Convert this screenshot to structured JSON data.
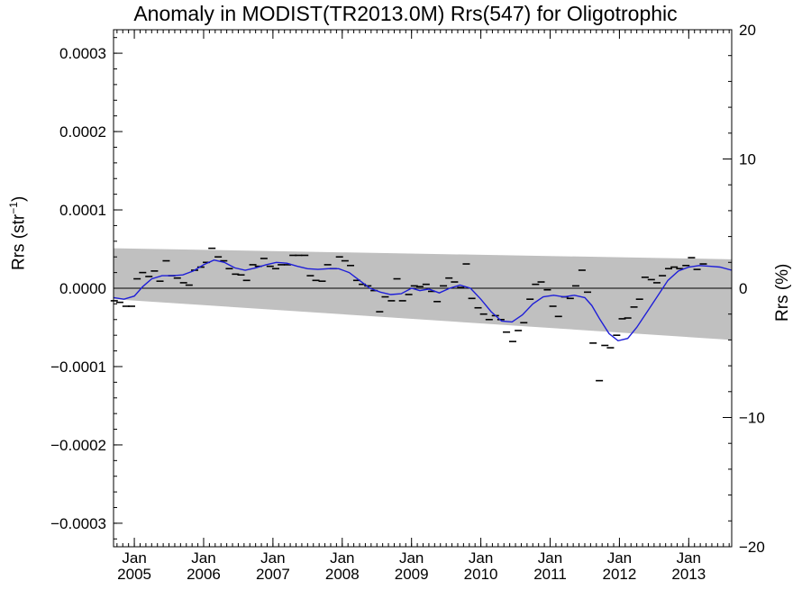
{
  "chart_data": {
    "type": "line",
    "title": "Anomaly in MODIST(TR2013.0M) Rrs(547) for Oligotrophic",
    "ylabel": "Rrs (str",
    "ylabel_sup": "−1",
    "ylabel_end": ")",
    "y2label": "Rrs (%)",
    "ylim": [
      -0.00033,
      0.00033
    ],
    "y2lim": [
      -20,
      20
    ],
    "xlim": [
      2004.7,
      2013.62
    ],
    "yticks": [
      {
        "v": 0.0003,
        "label": "0.0003"
      },
      {
        "v": 0.0002,
        "label": "0.0002"
      },
      {
        "v": 0.0001,
        "label": "0.0001"
      },
      {
        "v": 0.0,
        "label": "0.0000"
      },
      {
        "v": -0.0001,
        "label": "−0.0001"
      },
      {
        "v": -0.0002,
        "label": "−0.0002"
      },
      {
        "v": -0.0003,
        "label": "−0.0003"
      }
    ],
    "y2ticks": [
      {
        "v": 20,
        "label": "20"
      },
      {
        "v": 10,
        "label": "10"
      },
      {
        "v": 0,
        "label": "0"
      },
      {
        "v": -10,
        "label": "−10"
      },
      {
        "v": -20,
        "label": "−20"
      }
    ],
    "xticks": [
      {
        "x": 2005.0,
        "month": "Jan",
        "year": "2005"
      },
      {
        "x": 2006.0,
        "month": "Jan",
        "year": "2006"
      },
      {
        "x": 2007.0,
        "month": "Jan",
        "year": "2007"
      },
      {
        "x": 2008.0,
        "month": "Jan",
        "year": "2008"
      },
      {
        "x": 2009.0,
        "month": "Jan",
        "year": "2009"
      },
      {
        "x": 2010.0,
        "month": "Jan",
        "year": "2010"
      },
      {
        "x": 2011.0,
        "month": "Jan",
        "year": "2011"
      },
      {
        "x": 2012.0,
        "month": "Jan",
        "year": "2012"
      },
      {
        "x": 2013.0,
        "month": "Jan",
        "year": "2013"
      }
    ],
    "band": {
      "x": [
        2004.7,
        2013.62
      ],
      "upper": [
        5.1e-05,
        3.7e-05
      ],
      "lower": [
        -1.4e-05,
        -6.6e-05
      ]
    },
    "zero_line": 0.0,
    "points": [
      [
        2004.71,
        -1.6e-05
      ],
      [
        2004.79,
        -1.8e-05
      ],
      [
        2004.88,
        -2.3e-05
      ],
      [
        2004.96,
        -2.3e-05
      ],
      [
        2005.04,
        1.2e-05
      ],
      [
        2005.12,
        2e-05
      ],
      [
        2005.21,
        1.5e-05
      ],
      [
        2005.29,
        2.2e-05
      ],
      [
        2005.37,
        9e-06
      ],
      [
        2005.46,
        3.5e-05
      ],
      [
        2005.54,
        1.6e-05
      ],
      [
        2005.62,
        1.3e-05
      ],
      [
        2005.71,
        7e-06
      ],
      [
        2005.79,
        4e-06
      ],
      [
        2005.87,
        2.3e-05
      ],
      [
        2005.96,
        2.7e-05
      ],
      [
        2006.04,
        3.3e-05
      ],
      [
        2006.12,
        5.1e-05
      ],
      [
        2006.21,
        4e-05
      ],
      [
        2006.29,
        3.5e-05
      ],
      [
        2006.37,
        2.5e-05
      ],
      [
        2006.46,
        1.8e-05
      ],
      [
        2006.54,
        1.7e-05
      ],
      [
        2006.62,
        1e-05
      ],
      [
        2006.71,
        3e-05
      ],
      [
        2006.79,
        2.8e-05
      ],
      [
        2006.87,
        3.8e-05
      ],
      [
        2006.96,
        2.8e-05
      ],
      [
        2007.04,
        2.5e-05
      ],
      [
        2007.12,
        3e-05
      ],
      [
        2007.21,
        3e-05
      ],
      [
        2007.29,
        4.2e-05
      ],
      [
        2007.37,
        4.2e-05
      ],
      [
        2007.46,
        4.2e-05
      ],
      [
        2007.54,
        1.6e-05
      ],
      [
        2007.62,
        1e-05
      ],
      [
        2007.71,
        9e-06
      ],
      [
        2007.79,
        3e-05
      ],
      [
        2007.87,
        2.5e-05
      ],
      [
        2007.96,
        4e-05
      ],
      [
        2008.04,
        3.5e-05
      ],
      [
        2008.12,
        2.9e-05
      ],
      [
        2008.21,
        1e-05
      ],
      [
        2008.29,
        5e-06
      ],
      [
        2008.37,
        3e-06
      ],
      [
        2008.46,
        -3e-06
      ],
      [
        2008.54,
        -3e-05
      ],
      [
        2008.62,
        -1.1e-05
      ],
      [
        2008.71,
        -1.6e-05
      ],
      [
        2008.79,
        1.2e-05
      ],
      [
        2008.87,
        -1.6e-05
      ],
      [
        2008.96,
        -8e-06
      ],
      [
        2009.04,
        3e-06
      ],
      [
        2009.12,
        2e-06
      ],
      [
        2009.21,
        5e-06
      ],
      [
        2009.29,
        -4e-06
      ],
      [
        2009.37,
        -1.7e-05
      ],
      [
        2009.46,
        3e-06
      ],
      [
        2009.54,
        1.3e-05
      ],
      [
        2009.62,
        8e-06
      ],
      [
        2009.71,
        1e-06
      ],
      [
        2009.79,
        3.1e-05
      ],
      [
        2009.87,
        -1.3e-05
      ],
      [
        2009.96,
        -2.5e-05
      ],
      [
        2010.04,
        -3.3e-05
      ],
      [
        2010.12,
        -4e-05
      ],
      [
        2010.21,
        -3.5e-05
      ],
      [
        2010.29,
        -4e-05
      ],
      [
        2010.37,
        -5.6e-05
      ],
      [
        2010.46,
        -6.8e-05
      ],
      [
        2010.54,
        -5.4e-05
      ],
      [
        2010.62,
        -4.4e-05
      ],
      [
        2010.71,
        -1.4e-05
      ],
      [
        2010.79,
        5e-06
      ],
      [
        2010.87,
        8e-06
      ],
      [
        2010.96,
        -2e-06
      ],
      [
        2011.04,
        -2.3e-05
      ],
      [
        2011.12,
        -3.6e-05
      ],
      [
        2011.21,
        -1.1e-05
      ],
      [
        2011.29,
        -1.3e-05
      ],
      [
        2011.37,
        3e-06
      ],
      [
        2011.46,
        2.3e-05
      ],
      [
        2011.54,
        -5e-06
      ],
      [
        2011.62,
        -7e-05
      ],
      [
        2011.71,
        -0.000118
      ],
      [
        2011.79,
        -7.3e-05
      ],
      [
        2011.87,
        -7.6e-05
      ],
      [
        2011.96,
        -6e-05
      ],
      [
        2012.04,
        -3.9e-05
      ],
      [
        2012.12,
        -3.8e-05
      ],
      [
        2012.21,
        -2.4e-05
      ],
      [
        2012.29,
        -1.4e-05
      ],
      [
        2012.37,
        1.4e-05
      ],
      [
        2012.46,
        1.1e-05
      ],
      [
        2012.54,
        7e-06
      ],
      [
        2012.62,
        1.6e-05
      ],
      [
        2012.71,
        2.5e-05
      ],
      [
        2012.79,
        2.7e-05
      ],
      [
        2012.87,
        2.5e-05
      ],
      [
        2012.96,
        2.9e-05
      ],
      [
        2013.04,
        3.9e-05
      ],
      [
        2013.12,
        2.4e-05
      ],
      [
        2013.21,
        3.1e-05
      ]
    ],
    "smooth": [
      [
        2004.7,
        -1.2e-05
      ],
      [
        2004.85,
        -1.4e-05
      ],
      [
        2005.0,
        -1e-05
      ],
      [
        2005.12,
        2e-06
      ],
      [
        2005.25,
        1.2e-05
      ],
      [
        2005.4,
        1.6e-05
      ],
      [
        2005.55,
        1.6e-05
      ],
      [
        2005.7,
        1.7e-05
      ],
      [
        2005.85,
        2.2e-05
      ],
      [
        2006.0,
        3e-05
      ],
      [
        2006.15,
        3.6e-05
      ],
      [
        2006.3,
        3.3e-05
      ],
      [
        2006.45,
        2.6e-05
      ],
      [
        2006.6,
        2.3e-05
      ],
      [
        2006.75,
        2.6e-05
      ],
      [
        2006.9,
        3e-05
      ],
      [
        2007.05,
        3.3e-05
      ],
      [
        2007.2,
        3.2e-05
      ],
      [
        2007.35,
        2.8e-05
      ],
      [
        2007.5,
        2.5e-05
      ],
      [
        2007.65,
        2.4e-05
      ],
      [
        2007.8,
        2.5e-05
      ],
      [
        2007.95,
        2.5e-05
      ],
      [
        2008.1,
        2e-05
      ],
      [
        2008.25,
        1e-05
      ],
      [
        2008.4,
        0.0
      ],
      [
        2008.55,
        -5e-06
      ],
      [
        2008.7,
        -8e-06
      ],
      [
        2008.85,
        -7e-06
      ],
      [
        2009.0,
        0.0
      ],
      [
        2009.12,
        -3e-06
      ],
      [
        2009.25,
        -1e-06
      ],
      [
        2009.4,
        -6e-06
      ],
      [
        2009.55,
        0.0
      ],
      [
        2009.7,
        4e-06
      ],
      [
        2009.85,
        0.0
      ],
      [
        2010.0,
        -1.4e-05
      ],
      [
        2010.15,
        -3e-05
      ],
      [
        2010.3,
        -4.2e-05
      ],
      [
        2010.45,
        -4.3e-05
      ],
      [
        2010.6,
        -3.4e-05
      ],
      [
        2010.75,
        -2e-05
      ],
      [
        2010.9,
        -1.1e-05
      ],
      [
        2011.05,
        -9e-06
      ],
      [
        2011.2,
        -1.1e-05
      ],
      [
        2011.35,
        -9e-06
      ],
      [
        2011.5,
        -1.2e-05
      ],
      [
        2011.6,
        -2.2e-05
      ],
      [
        2011.72,
        -4e-05
      ],
      [
        2011.85,
        -5.8e-05
      ],
      [
        2011.98,
        -6.7e-05
      ],
      [
        2012.12,
        -6.4e-05
      ],
      [
        2012.25,
        -5e-05
      ],
      [
        2012.4,
        -3e-05
      ],
      [
        2012.55,
        -1e-05
      ],
      [
        2012.7,
        1e-05
      ],
      [
        2012.85,
        2.2e-05
      ],
      [
        2013.0,
        2.7e-05
      ],
      [
        2013.15,
        2.9e-05
      ],
      [
        2013.3,
        2.8e-05
      ],
      [
        2013.45,
        2.7e-05
      ],
      [
        2013.62,
        2.3e-05
      ]
    ],
    "colors": {
      "band": "#c0c0c0",
      "smooth": "#1e1ed8",
      "points": "#000000",
      "axis": "#000000"
    }
  }
}
